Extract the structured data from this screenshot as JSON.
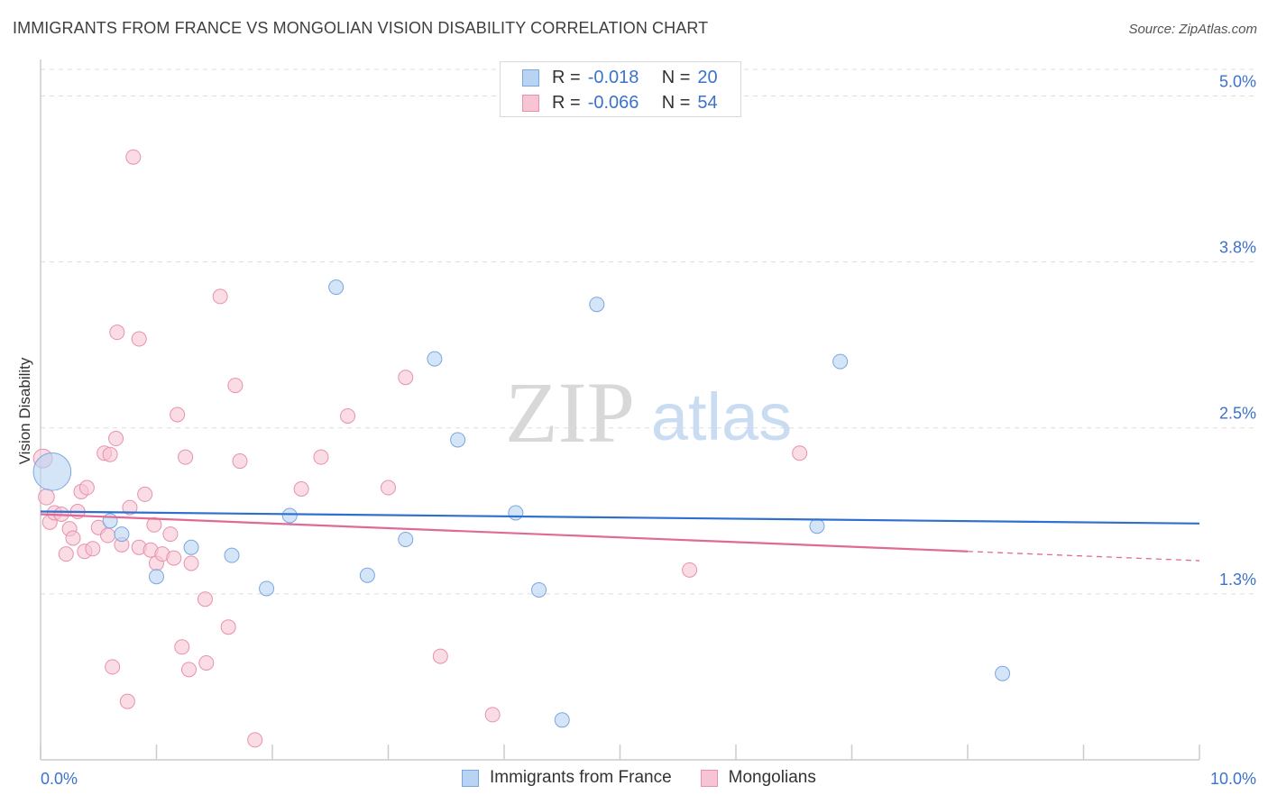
{
  "title": "IMMIGRANTS FROM FRANCE VS MONGOLIAN VISION DISABILITY CORRELATION CHART",
  "source": "Source: ZipAtlas.com",
  "watermark": {
    "zip": "ZIP",
    "atlas": "atlas"
  },
  "legend_stats": [
    {
      "r_label": "R =",
      "r_value": "-0.018",
      "n_label": "N =",
      "n_value": "20"
    },
    {
      "r_label": "R =",
      "r_value": "-0.066",
      "n_label": "N =",
      "n_value": "54"
    }
  ],
  "colors": {
    "blue_fill": "#b9d3f3",
    "blue_stroke": "#7aa6df",
    "blue_line": "#2f6fcf",
    "pink_fill": "#f7c4d4",
    "pink_stroke": "#e891ad",
    "pink_line": "#e06a95",
    "axis_text": "#3d72cc",
    "grid": "#dddddd"
  },
  "chart_data": {
    "type": "scatter",
    "title": "IMMIGRANTS FROM FRANCE VS MONGOLIAN VISION DISABILITY CORRELATION CHART",
    "xlabel": "",
    "ylabel": "Vision Disability",
    "xlim": [
      0,
      10
    ],
    "ylim": [
      0,
      5.2
    ],
    "x_tick_labels": [
      "0.0%",
      "10.0%"
    ],
    "y_ticks": [
      1.25,
      2.5,
      3.75,
      5.0
    ],
    "y_tick_labels": [
      "1.3%",
      "2.5%",
      "3.8%",
      "5.0%"
    ],
    "grid": true,
    "legend_position": "bottom-center",
    "series": [
      {
        "name": "Immigrants from France",
        "color": "#b9d3f3",
        "points": [
          [
            0.1,
            2.17,
            2.6
          ],
          [
            0.6,
            1.8,
            1
          ],
          [
            0.7,
            1.7,
            1
          ],
          [
            1.0,
            1.38,
            1
          ],
          [
            1.3,
            1.6,
            1
          ],
          [
            1.65,
            1.54,
            1
          ],
          [
            1.95,
            1.29,
            1
          ],
          [
            2.15,
            1.84,
            1
          ],
          [
            2.55,
            3.56,
            1
          ],
          [
            2.82,
            1.39,
            1
          ],
          [
            3.15,
            1.66,
            1
          ],
          [
            3.4,
            3.02,
            1
          ],
          [
            3.6,
            2.41,
            1
          ],
          [
            4.1,
            1.86,
            1
          ],
          [
            4.3,
            1.28,
            1
          ],
          [
            4.5,
            0.3,
            1
          ],
          [
            4.8,
            3.43,
            1
          ],
          [
            6.7,
            1.76,
            1
          ],
          [
            6.9,
            3.0,
            1
          ],
          [
            8.3,
            0.65,
            1
          ]
        ],
        "trend": {
          "x": [
            0,
            10
          ],
          "y": [
            1.87,
            1.78
          ],
          "dashed_from": null
        }
      },
      {
        "name": "Mongolians",
        "color": "#f7c4d4",
        "points": [
          [
            0.02,
            2.27,
            1.3
          ],
          [
            0.05,
            1.98,
            1.1
          ],
          [
            0.08,
            1.79,
            1
          ],
          [
            0.12,
            1.86,
            1
          ],
          [
            0.18,
            1.85,
            1
          ],
          [
            0.22,
            1.55,
            1
          ],
          [
            0.25,
            1.74,
            1
          ],
          [
            0.28,
            1.67,
            1
          ],
          [
            0.32,
            1.87,
            1
          ],
          [
            0.35,
            2.02,
            1
          ],
          [
            0.38,
            1.57,
            1
          ],
          [
            0.4,
            2.05,
            1
          ],
          [
            0.45,
            1.59,
            1
          ],
          [
            0.5,
            1.75,
            1
          ],
          [
            0.55,
            2.31,
            1
          ],
          [
            0.58,
            1.69,
            1
          ],
          [
            0.62,
            0.7,
            1
          ],
          [
            0.65,
            2.42,
            1
          ],
          [
            0.66,
            3.22,
            1
          ],
          [
            0.7,
            1.62,
            1
          ],
          [
            0.75,
            0.44,
            1
          ],
          [
            0.77,
            1.9,
            1
          ],
          [
            0.8,
            4.54,
            1
          ],
          [
            0.85,
            3.17,
            1
          ],
          [
            0.85,
            1.6,
            1
          ],
          [
            0.9,
            2.0,
            1
          ],
          [
            0.95,
            1.58,
            1
          ],
          [
            0.98,
            1.77,
            1
          ],
          [
            1.0,
            1.48,
            1
          ],
          [
            1.05,
            1.55,
            1
          ],
          [
            1.12,
            1.7,
            1
          ],
          [
            1.15,
            1.52,
            1
          ],
          [
            1.18,
            2.6,
            1
          ],
          [
            1.22,
            0.85,
            1
          ],
          [
            1.25,
            2.28,
            1
          ],
          [
            1.28,
            0.68,
            1
          ],
          [
            1.3,
            1.48,
            1
          ],
          [
            1.42,
            1.21,
            1
          ],
          [
            1.43,
            0.73,
            1
          ],
          [
            1.55,
            3.49,
            1
          ],
          [
            1.62,
            1.0,
            1
          ],
          [
            1.68,
            2.82,
            1
          ],
          [
            1.72,
            2.25,
            1
          ],
          [
            1.85,
            0.15,
            1
          ],
          [
            2.25,
            2.04,
            1
          ],
          [
            2.42,
            2.28,
            1
          ],
          [
            2.65,
            2.59,
            1
          ],
          [
            3.0,
            2.05,
            1
          ],
          [
            3.15,
            2.88,
            1
          ],
          [
            3.45,
            0.78,
            1
          ],
          [
            3.9,
            0.34,
            1
          ],
          [
            5.6,
            1.43,
            1
          ],
          [
            6.55,
            2.31,
            1
          ],
          [
            0.6,
            2.3,
            1
          ]
        ],
        "trend": {
          "x": [
            0,
            10
          ],
          "y": [
            1.85,
            1.5
          ],
          "dashed_from": 8.0
        }
      }
    ]
  },
  "bottom_legend": [
    "Immigrants from France",
    "Mongolians"
  ]
}
